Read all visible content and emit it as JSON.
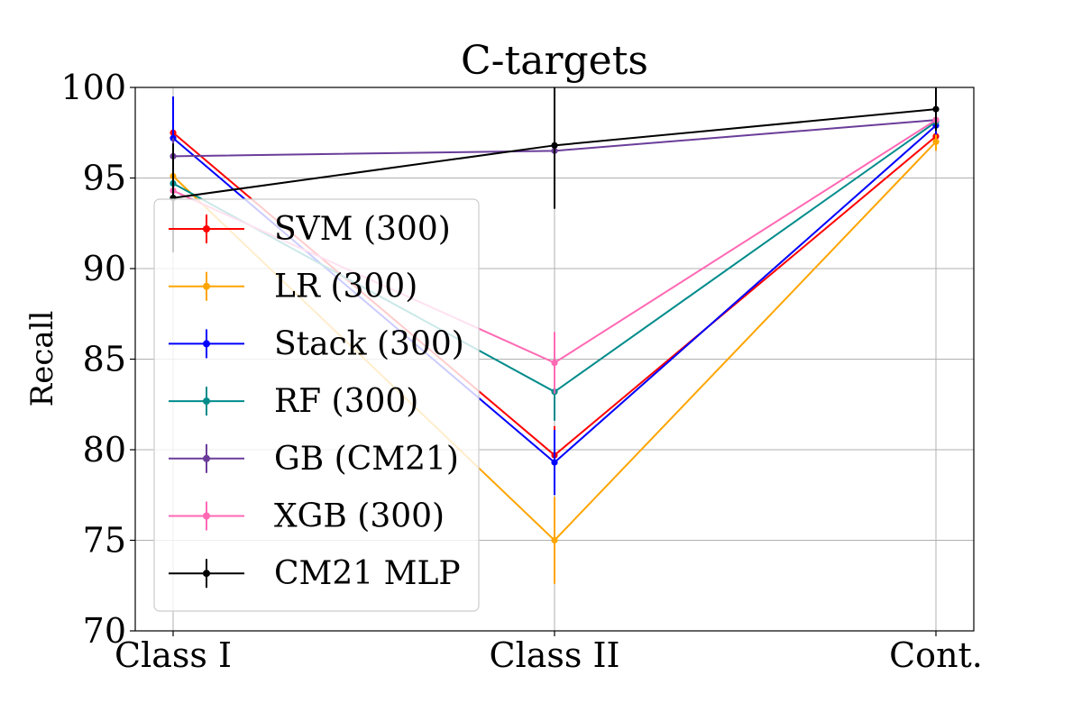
{
  "chart_data": {
    "type": "line",
    "title": "C-targets",
    "xlabel": "",
    "ylabel": "Recall",
    "categories": [
      "Class I",
      "Class II",
      "Cont."
    ],
    "ylim": [
      70,
      100
    ],
    "yticks": [
      70,
      75,
      80,
      85,
      90,
      95,
      100
    ],
    "grid": true,
    "legend_position": "lower-left",
    "series": [
      {
        "name": "SVM (300)",
        "color": "#ff0000",
        "values": [
          97.5,
          79.7,
          97.3
        ],
        "errors": [
          1.5,
          1.6,
          0.5
        ]
      },
      {
        "name": "LR (300)",
        "color": "#ffa500",
        "values": [
          95.1,
          75.0,
          97.0
        ],
        "errors": [
          1.5,
          2.4,
          0.5
        ]
      },
      {
        "name": "Stack (300)",
        "color": "#0000ff",
        "values": [
          97.2,
          79.3,
          97.9
        ],
        "errors": [
          2.3,
          1.8,
          0.5
        ]
      },
      {
        "name": "RF (300)",
        "color": "#008b8b",
        "values": [
          94.7,
          83.2,
          98.1
        ],
        "errors": [
          1.5,
          1.6,
          0.5
        ]
      },
      {
        "name": "GB (CM21)",
        "color": "#6a3d9a",
        "values": [
          96.2,
          96.5,
          98.2
        ],
        "errors": [
          1.0,
          0.0,
          0.5
        ]
      },
      {
        "name": "XGB (300)",
        "color": "#ff69b4",
        "values": [
          94.3,
          84.8,
          98.2
        ],
        "errors": [
          1.5,
          1.7,
          0.5
        ]
      },
      {
        "name": "CM21 MLP",
        "color": "#000000",
        "values": [
          93.9,
          96.8,
          98.8
        ],
        "errors": [
          3.0,
          3.5,
          1.2
        ]
      }
    ]
  }
}
